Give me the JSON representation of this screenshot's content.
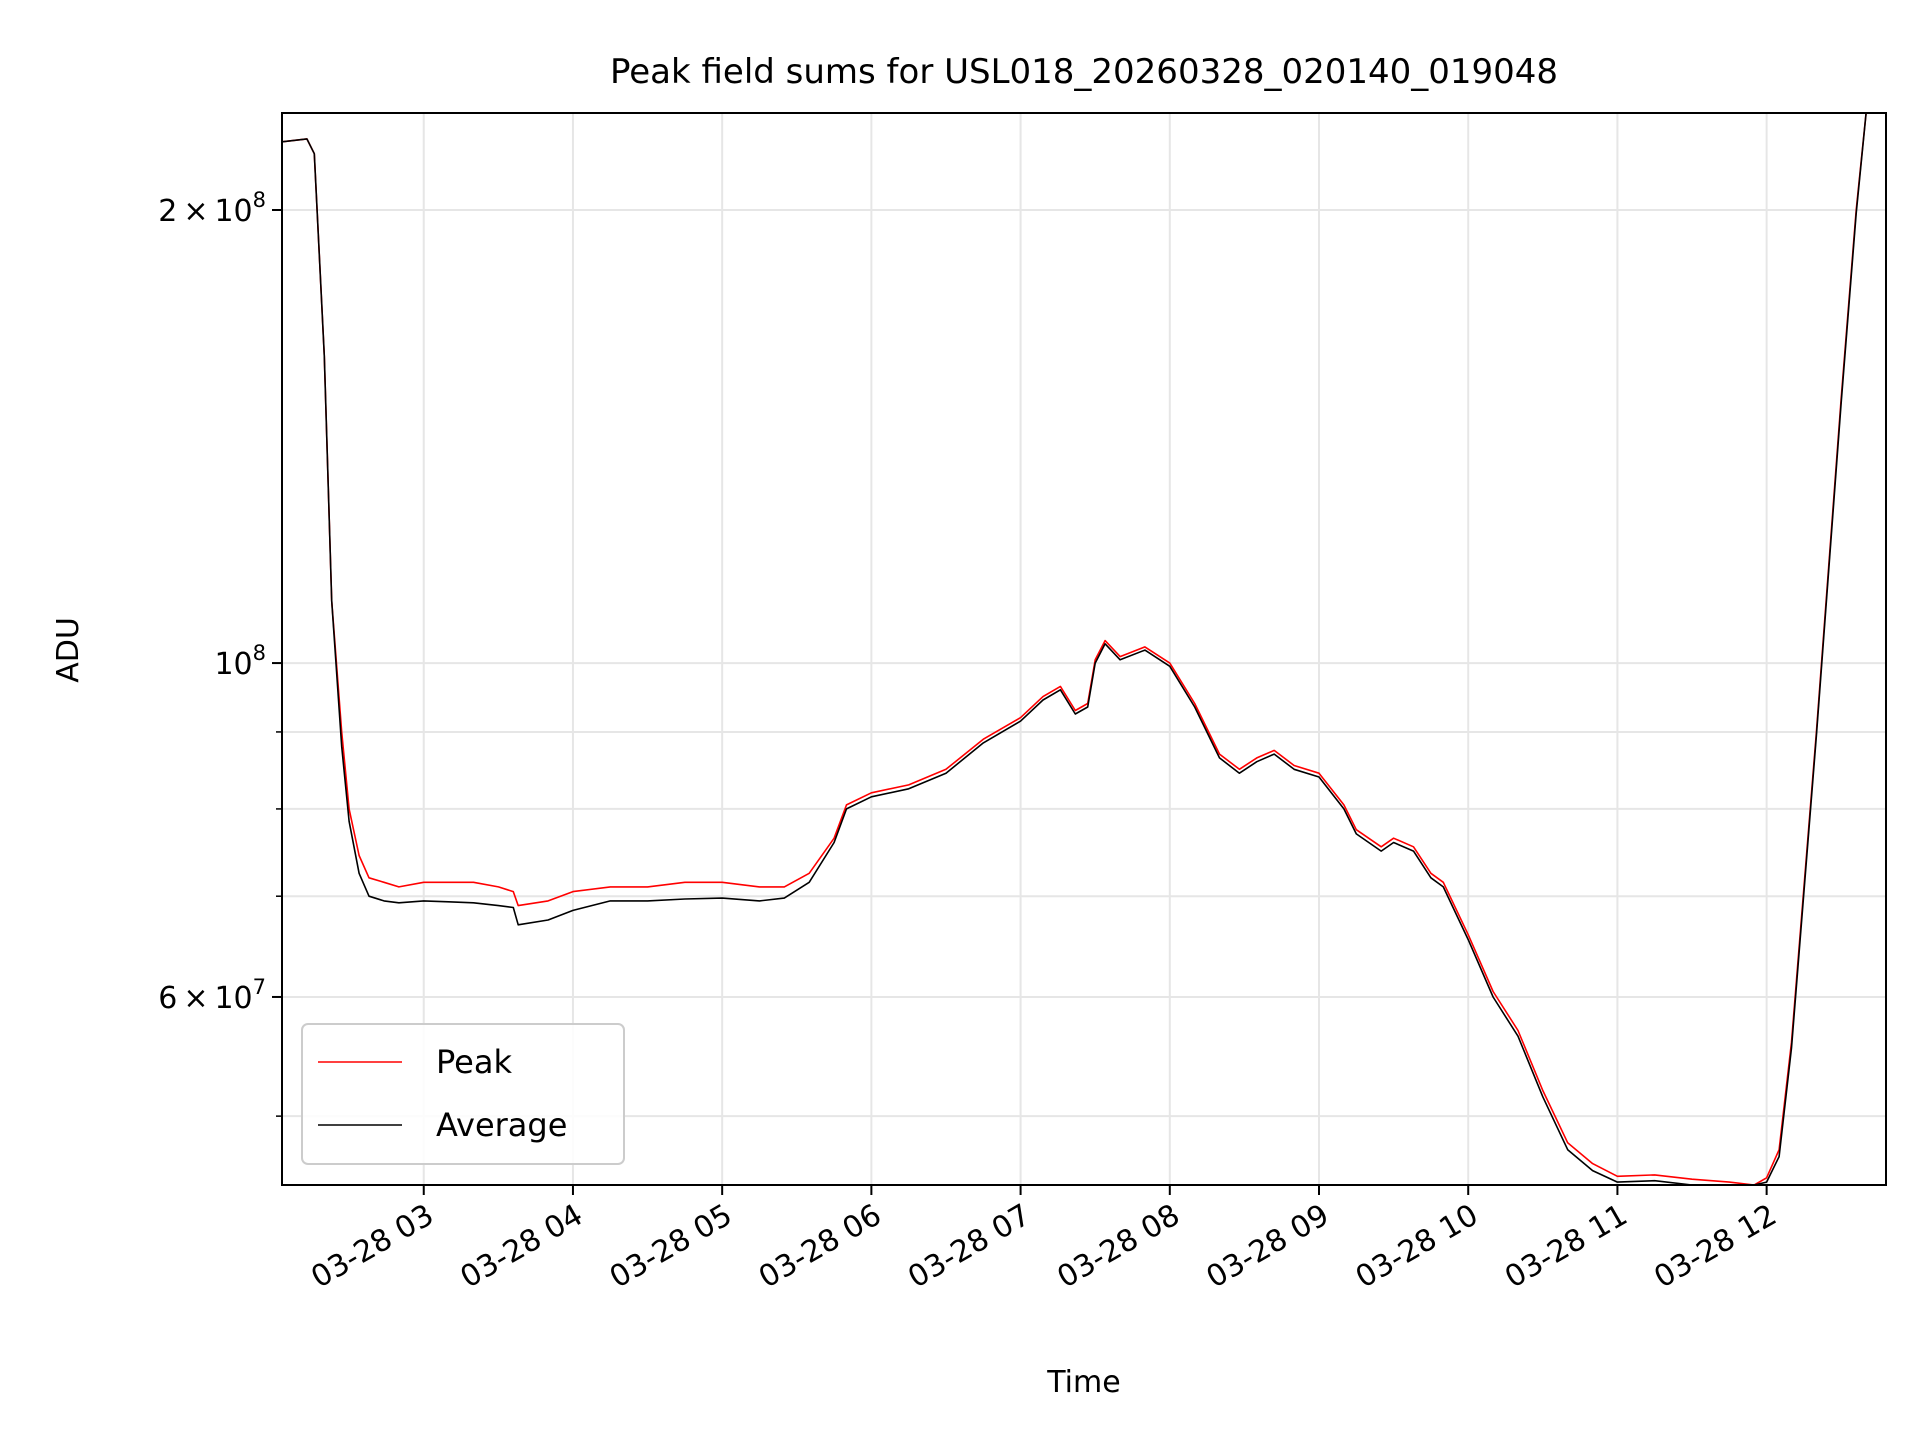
{
  "chart_data": {
    "type": "line",
    "title": "Peak field sums for USL018_20260328_020140_019048",
    "xlabel": "Time",
    "ylabel": "ADU",
    "xlim": [
      "2026-03-28 02:03",
      "2026-03-28 12:48"
    ],
    "ylim": [
      45000000,
      232000000
    ],
    "yscale": "log",
    "grid": true,
    "legend_position": "lower-left",
    "x_ticks": [
      {
        "value": "2026-03-28 03:00",
        "label": "03-28 03"
      },
      {
        "value": "2026-03-28 04:00",
        "label": "03-28 04"
      },
      {
        "value": "2026-03-28 05:00",
        "label": "03-28 05"
      },
      {
        "value": "2026-03-28 06:00",
        "label": "03-28 06"
      },
      {
        "value": "2026-03-28 07:00",
        "label": "03-28 07"
      },
      {
        "value": "2026-03-28 08:00",
        "label": "03-28 08"
      },
      {
        "value": "2026-03-28 09:00",
        "label": "03-28 09"
      },
      {
        "value": "2026-03-28 10:00",
        "label": "03-28 10"
      },
      {
        "value": "2026-03-28 11:00",
        "label": "03-28 11"
      },
      {
        "value": "2026-03-28 12:00",
        "label": "03-28 12"
      }
    ],
    "y_major_ticks": [
      {
        "value": 60000000,
        "mant": "6",
        "exp": "7"
      },
      {
        "value": 100000000,
        "mant": "",
        "exp": "8"
      },
      {
        "value": 200000000,
        "mant": "2",
        "exp": "8"
      }
    ],
    "y_minor_ticks": [
      50000000,
      70000000,
      80000000,
      90000000
    ],
    "series": [
      {
        "name": "Peak",
        "color": "#ff0000",
        "x": [
          "2026-03-28 02:03",
          "2026-03-28 02:13",
          "2026-03-28 02:16",
          "2026-03-28 02:20",
          "2026-03-28 02:23",
          "2026-03-28 02:27",
          "2026-03-28 02:30",
          "2026-03-28 02:34",
          "2026-03-28 02:38",
          "2026-03-28 02:44",
          "2026-03-28 02:50",
          "2026-03-28 03:00",
          "2026-03-28 03:10",
          "2026-03-28 03:20",
          "2026-03-28 03:30",
          "2026-03-28 03:36",
          "2026-03-28 03:38",
          "2026-03-28 03:50",
          "2026-03-28 04:00",
          "2026-03-28 04:15",
          "2026-03-28 04:30",
          "2026-03-28 04:45",
          "2026-03-28 05:00",
          "2026-03-28 05:15",
          "2026-03-28 05:25",
          "2026-03-28 05:35",
          "2026-03-28 05:45",
          "2026-03-28 05:50",
          "2026-03-28 06:00",
          "2026-03-28 06:15",
          "2026-03-28 06:30",
          "2026-03-28 06:45",
          "2026-03-28 07:00",
          "2026-03-28 07:09",
          "2026-03-28 07:16",
          "2026-03-28 07:22",
          "2026-03-28 07:27",
          "2026-03-28 07:30",
          "2026-03-28 07:34",
          "2026-03-28 07:40",
          "2026-03-28 07:50",
          "2026-03-28 08:00",
          "2026-03-28 08:10",
          "2026-03-28 08:20",
          "2026-03-28 08:28",
          "2026-03-28 08:35",
          "2026-03-28 08:42",
          "2026-03-28 08:50",
          "2026-03-28 09:00",
          "2026-03-28 09:10",
          "2026-03-28 09:15",
          "2026-03-28 09:25",
          "2026-03-28 09:30",
          "2026-03-28 09:38",
          "2026-03-28 09:45",
          "2026-03-28 09:50",
          "2026-03-28 10:00",
          "2026-03-28 10:10",
          "2026-03-28 10:20",
          "2026-03-28 10:30",
          "2026-03-28 10:40",
          "2026-03-28 10:50",
          "2026-03-28 11:00",
          "2026-03-28 11:15",
          "2026-03-28 11:30",
          "2026-03-28 11:45",
          "2026-03-28 11:55",
          "2026-03-28 12:00",
          "2026-03-28 12:05",
          "2026-03-28 12:10",
          "2026-03-28 12:20",
          "2026-03-28 12:30",
          "2026-03-28 12:36",
          "2026-03-28 12:40"
        ],
        "y": [
          222000000,
          223000000,
          218000000,
          160000000,
          110000000,
          90000000,
          80000000,
          74500000,
          72000000,
          71500000,
          71000000,
          71500000,
          71500000,
          71500000,
          71000000,
          70500000,
          69000000,
          69500000,
          70500000,
          71000000,
          71000000,
          71500000,
          71500000,
          71000000,
          71000000,
          72500000,
          76500000,
          80500000,
          82000000,
          83000000,
          85000000,
          89000000,
          92000000,
          95000000,
          96500000,
          93000000,
          94000000,
          100500000,
          103500000,
          101000000,
          102500000,
          100000000,
          94000000,
          87000000,
          85000000,
          86500000,
          87500000,
          85500000,
          84500000,
          80500000,
          77500000,
          75500000,
          76500000,
          75500000,
          72500000,
          71500000,
          66000000,
          60500000,
          57000000,
          52000000,
          48000000,
          46500000,
          45600000,
          45700000,
          45400000,
          45200000,
          45000000,
          45500000,
          47500000,
          56000000,
          90000000,
          150000000,
          200000000,
          232000000
        ]
      },
      {
        "name": "Average",
        "color": "#000000",
        "x": [
          "2026-03-28 02:03",
          "2026-03-28 02:13",
          "2026-03-28 02:16",
          "2026-03-28 02:20",
          "2026-03-28 02:23",
          "2026-03-28 02:27",
          "2026-03-28 02:30",
          "2026-03-28 02:34",
          "2026-03-28 02:38",
          "2026-03-28 02:44",
          "2026-03-28 02:50",
          "2026-03-28 03:00",
          "2026-03-28 03:10",
          "2026-03-28 03:20",
          "2026-03-28 03:30",
          "2026-03-28 03:36",
          "2026-03-28 03:38",
          "2026-03-28 03:50",
          "2026-03-28 04:00",
          "2026-03-28 04:15",
          "2026-03-28 04:30",
          "2026-03-28 04:45",
          "2026-03-28 05:00",
          "2026-03-28 05:15",
          "2026-03-28 05:25",
          "2026-03-28 05:35",
          "2026-03-28 05:45",
          "2026-03-28 05:50",
          "2026-03-28 06:00",
          "2026-03-28 06:15",
          "2026-03-28 06:30",
          "2026-03-28 06:45",
          "2026-03-28 07:00",
          "2026-03-28 07:09",
          "2026-03-28 07:16",
          "2026-03-28 07:22",
          "2026-03-28 07:27",
          "2026-03-28 07:30",
          "2026-03-28 07:34",
          "2026-03-28 07:40",
          "2026-03-28 07:50",
          "2026-03-28 08:00",
          "2026-03-28 08:10",
          "2026-03-28 08:20",
          "2026-03-28 08:28",
          "2026-03-28 08:35",
          "2026-03-28 08:42",
          "2026-03-28 08:50",
          "2026-03-28 09:00",
          "2026-03-28 09:10",
          "2026-03-28 09:15",
          "2026-03-28 09:25",
          "2026-03-28 09:30",
          "2026-03-28 09:38",
          "2026-03-28 09:45",
          "2026-03-28 09:50",
          "2026-03-28 10:00",
          "2026-03-28 10:10",
          "2026-03-28 10:20",
          "2026-03-28 10:30",
          "2026-03-28 10:40",
          "2026-03-28 10:50",
          "2026-03-28 11:00",
          "2026-03-28 11:15",
          "2026-03-28 11:30",
          "2026-03-28 11:45",
          "2026-03-28 11:55",
          "2026-03-28 12:00",
          "2026-03-28 12:05",
          "2026-03-28 12:10",
          "2026-03-28 12:20",
          "2026-03-28 12:30",
          "2026-03-28 12:36",
          "2026-03-28 12:40"
        ],
        "y": [
          222000000,
          223000000,
          218000000,
          160000000,
          110000000,
          88000000,
          78500000,
          72500000,
          70000000,
          69500000,
          69300000,
          69500000,
          69400000,
          69300000,
          69000000,
          68800000,
          67000000,
          67500000,
          68500000,
          69500000,
          69500000,
          69700000,
          69800000,
          69500000,
          69800000,
          71500000,
          76000000,
          80000000,
          81500000,
          82500000,
          84500000,
          88500000,
          91500000,
          94500000,
          96000000,
          92500000,
          93500000,
          100000000,
          103000000,
          100500000,
          102000000,
          99500000,
          93500000,
          86500000,
          84500000,
          86000000,
          87000000,
          85000000,
          84000000,
          80000000,
          77000000,
          75000000,
          76000000,
          75000000,
          72000000,
          71000000,
          65500000,
          60000000,
          56500000,
          51500000,
          47500000,
          46000000,
          45200000,
          45300000,
          45000000,
          44900000,
          44800000,
          45200000,
          47000000,
          55500000,
          89500000,
          149000000,
          199000000,
          232000000
        ]
      }
    ]
  }
}
